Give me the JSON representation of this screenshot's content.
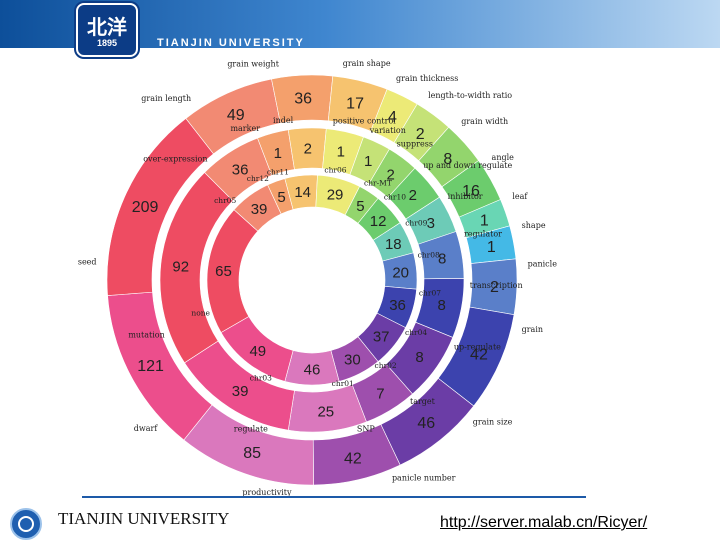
{
  "header": {
    "logo_text": "北洋",
    "logo_year": "1895",
    "title": "TIANJIN UNIVERSITY"
  },
  "footer": {
    "university": "TIANJIN UNIVERSITY",
    "url": "http://server.malab.cn/Ricyer/"
  },
  "diagram": {
    "rings": [
      {
        "name": "outer",
        "segments": [
          {
            "label": "grain length",
            "value": "49",
            "color": "#f28a73"
          },
          {
            "label": "grain weight",
            "value": "36",
            "color": "#f4a06c"
          },
          {
            "label": "grain shape",
            "value": "17",
            "color": "#f6c36f"
          },
          {
            "label": "grain thickness",
            "value": "4",
            "color": "#ecea77"
          },
          {
            "label": "length-to-width ratio",
            "value": "2",
            "color": "#c5e277"
          },
          {
            "label": "grain width",
            "value": "8",
            "color": "#93d56d"
          },
          {
            "label": "angle",
            "value": "16",
            "color": "#6ccc6d"
          },
          {
            "label": "leaf",
            "value": "1",
            "color": "#69d6b4"
          },
          {
            "label": "shape",
            "value": "1",
            "color": "#44b9e6"
          },
          {
            "label": "panicle",
            "value": "2",
            "color": "#5a7fc9"
          },
          {
            "label": "grain",
            "value": "42",
            "color": "#3c43ae"
          },
          {
            "label": "grain size",
            "value": "46",
            "color": "#6b3da6"
          },
          {
            "label": "panicle number",
            "value": "42",
            "color": "#9e4fad"
          },
          {
            "label": "productivity",
            "value": "85",
            "color": "#da78bd"
          },
          {
            "label": "dwarf",
            "value": "121",
            "color": "#ec4e8c"
          },
          {
            "label": "seed",
            "value": "209",
            "color": "#ee4c62"
          }
        ]
      },
      {
        "name": "middle",
        "segments": [
          {
            "label": "over-expression",
            "value": "36",
            "color": "#f28a73"
          },
          {
            "label": "marker",
            "value": "1",
            "color": "#f4a06c"
          },
          {
            "label": "indel",
            "value": "2",
            "color": "#f6c36f"
          },
          {
            "label": "positive control",
            "value": "1",
            "color": "#ecea77"
          },
          {
            "label": "variation",
            "value": "1",
            "color": "#c5e277"
          },
          {
            "label": "suppress",
            "value": "2",
            "color": "#93d56d"
          },
          {
            "label": "up and down regulate",
            "value": "2",
            "color": "#6ccc6d"
          },
          {
            "label": "inhibitor",
            "value": "3",
            "color": "#6dcbb7"
          },
          {
            "label": "regulator",
            "value": "8",
            "color": "#5a7fc9"
          },
          {
            "label": "transcription",
            "value": "8",
            "color": "#3c43ae"
          },
          {
            "label": "up-regulate",
            "value": "8",
            "color": "#6b3da6"
          },
          {
            "label": "target",
            "value": "7",
            "color": "#9e4fad"
          },
          {
            "label": "SNP",
            "value": "25",
            "color": "#da78bd"
          },
          {
            "label": "regulate",
            "value": "39",
            "color": "#ec4e8c"
          },
          {
            "label": "mutation",
            "value": "92",
            "color": "#ee4c62"
          }
        ]
      },
      {
        "name": "inner",
        "segments": [
          {
            "label": "chr05",
            "value": "39",
            "color": "#f28a73"
          },
          {
            "label": "chr12",
            "value": "5",
            "color": "#f4a06c"
          },
          {
            "label": "chr11",
            "value": "14",
            "color": "#f6c36f"
          },
          {
            "label": "chr06",
            "value": "29",
            "color": "#ecea77"
          },
          {
            "label": "chr-MT",
            "value": "5",
            "color": "#93d56d"
          },
          {
            "label": "chr10",
            "value": "12",
            "color": "#6ccc6d"
          },
          {
            "label": "chr09",
            "value": "18",
            "color": "#6dcbb7"
          },
          {
            "label": "chr08",
            "value": "20",
            "color": "#5a7fc9"
          },
          {
            "label": "chr07",
            "value": "36",
            "color": "#3c43ae"
          },
          {
            "label": "chr04",
            "value": "37",
            "color": "#6b3da6"
          },
          {
            "label": "chr02",
            "value": "30",
            "color": "#9e4fad"
          },
          {
            "label": "chr01",
            "value": "46",
            "color": "#da78bd"
          },
          {
            "label": "chr03",
            "value": "49",
            "color": "#ec4e8c"
          },
          {
            "label": "none",
            "value": "65",
            "color": "#ee4c62"
          }
        ]
      }
    ]
  }
}
